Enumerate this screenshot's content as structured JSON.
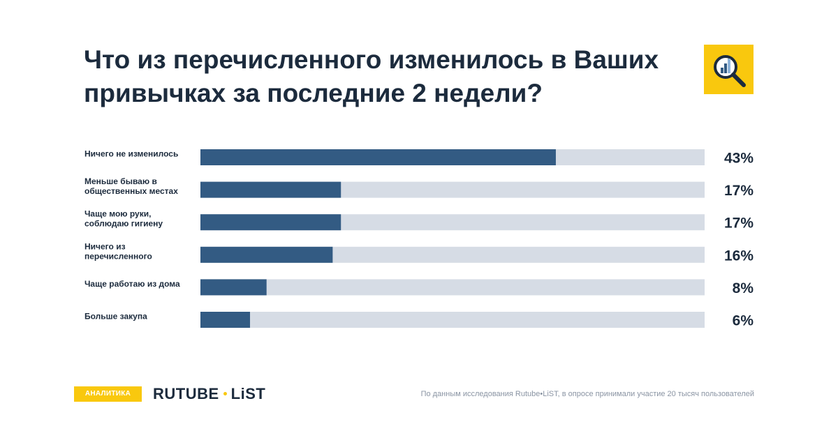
{
  "title": "Что из перечисленного изменилось в Ваших привычках за последние 2 недели?",
  "colors": {
    "bar_fill": "#335b83",
    "bar_track": "#d6dce5",
    "accent": "#f9c80e",
    "text": "#1c2b3d",
    "muted": "#8a94a3"
  },
  "logo_icon": "magnifier-bar-chart-icon",
  "chart_data": {
    "type": "bar",
    "orientation": "horizontal",
    "categories": [
      "Ничего не изменилось",
      "Меньше бываю в общественных местах",
      "Чаще мою руки, соблюдаю гигиену",
      "Ничего из перечисленного",
      "Чаще работаю из дома",
      "Больше закупа"
    ],
    "category_lines": [
      [
        "Ничего не изменилось"
      ],
      [
        "Меньше бываю в",
        "общественных местах"
      ],
      [
        "Чаще мою руки,",
        "соблюдаю гигиену"
      ],
      [
        "Ничего из",
        "перечисленного"
      ],
      [
        "Чаще работаю из дома"
      ],
      [
        "Больше закупа"
      ]
    ],
    "values": [
      43,
      17,
      17,
      16,
      8,
      6
    ],
    "value_labels": [
      "43%",
      "17%",
      "17%",
      "16%",
      "8%",
      "6%"
    ],
    "unit": "%",
    "xlim": [
      0,
      61
    ],
    "grid": false,
    "legend": "none"
  },
  "footer": {
    "tag": "АНАЛИТИКА",
    "brand_left": "RUTUBE",
    "brand_right": "LiST",
    "source": "По данным исследования Rutube•LiST, в опросе принимали участие 20 тысяч пользователей"
  }
}
